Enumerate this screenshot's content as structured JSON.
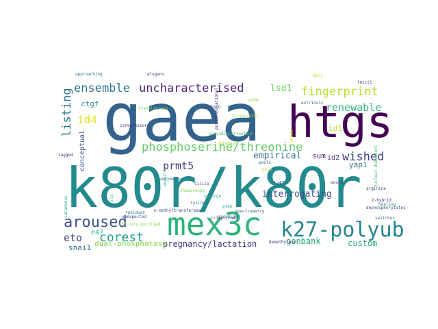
{
  "cloud": {
    "words": [
      {
        "text": "gaea",
        "color": "#33638d"
      },
      {
        "text": "k80r/k80r",
        "color": "#238a8d"
      },
      {
        "text": "htgs",
        "color": "#440154"
      },
      {
        "text": "mex3c",
        "color": "#2fb47c"
      },
      {
        "text": "k27-polyub",
        "color": "#25858e"
      },
      {
        "text": "phosphoserine/threonine",
        "color": "#5ec962"
      },
      {
        "text": "aroused",
        "color": "#3b528b"
      },
      {
        "text": "ensemble",
        "color": "#2a788e"
      },
      {
        "text": "uncharacterised",
        "color": "#482677"
      },
      {
        "text": "fingerprint",
        "color": "#b5de2b"
      },
      {
        "text": "renewable",
        "color": "#35b779"
      },
      {
        "text": "prmt5",
        "color": "#443983"
      },
      {
        "text": "wished",
        "color": "#404688"
      },
      {
        "text": "corest",
        "color": "#20a386"
      },
      {
        "text": "listing",
        "color": "#2a788e"
      },
      {
        "text": "id4",
        "color": "#dde318"
      },
      {
        "text": "eto",
        "color": "#414487"
      },
      {
        "text": "empirical",
        "color": "#2d708e"
      },
      {
        "text": "interrogating",
        "color": "#3b528b"
      },
      {
        "text": "genbank",
        "color": "#22a884"
      },
      {
        "text": "custom",
        "color": "#29af7f"
      },
      {
        "text": "pregnancy/lactation",
        "color": "#46327e"
      },
      {
        "text": "dual-phosphatase",
        "color": "#86d549"
      },
      {
        "text": "snai1",
        "color": "#31688e"
      },
      {
        "text": "sum",
        "color": "#481f70"
      },
      {
        "text": "lsd1",
        "color": "#6ece58"
      },
      {
        "text": "yap1",
        "color": "#2c728e"
      },
      {
        "text": "id3",
        "color": "#2e6f8e"
      },
      {
        "text": "id2",
        "color": "#453882"
      },
      {
        "text": "id1",
        "color": "#bddf26"
      },
      {
        "text": "ctgf",
        "color": "#21908d"
      },
      {
        "text": "conceptual",
        "color": "#3e4a89"
      },
      {
        "text": "e47",
        "color": "#2ab07f"
      },
      {
        "text": "cutaneous",
        "color": "#1f9e89"
      },
      {
        "text": "ela",
        "color": "#52c569"
      },
      {
        "text": "tagged",
        "color": "#472c7a"
      },
      {
        "text": "approaching",
        "color": "#2a768e"
      },
      {
        "text": "elegans",
        "color": "#3f4889"
      },
      {
        "text": "translations",
        "color": "#7ad151"
      },
      {
        "text": "corepressor",
        "color": "#482475"
      },
      {
        "text": "enzymatic",
        "color": "#2c738e"
      },
      {
        "text": "perturb",
        "color": "#38598c"
      },
      {
        "text": "p300",
        "color": "#95d840"
      },
      {
        "text": "extrinsic",
        "color": "#39568c"
      },
      {
        "text": "bmi1",
        "color": "#c2df23"
      },
      {
        "text": "tmict1",
        "color": "#433e85"
      },
      {
        "text": "posttranslational",
        "color": "#481a6c"
      },
      {
        "text": "illustrates",
        "color": "#a2da37"
      },
      {
        "text": "polyubiquitination",
        "color": "#4ac16d"
      },
      {
        "text": "database",
        "color": "#a8db34"
      },
      {
        "text": "n-methyltransferase",
        "color": "#3d4e8a"
      },
      {
        "text": "residues",
        "color": "#2d718e"
      },
      {
        "text": "unexpected",
        "color": "#3b528b"
      },
      {
        "text": "affinity-purified",
        "color": "#8ed645"
      },
      {
        "text": "silico",
        "color": "#424086"
      },
      {
        "text": "chaperones",
        "color": "#7fd34e"
      },
      {
        "text": "lysines",
        "color": "#2f6c8e"
      },
      {
        "text": "pten",
        "color": "#1e9b8a"
      },
      {
        "text": "paradigm",
        "color": "#2e6e8e"
      },
      {
        "text": "crispr/cas9",
        "color": "#472d7b"
      },
      {
        "text": "pools",
        "color": "#30698e"
      },
      {
        "text": "spectrometry",
        "color": "#375a8c"
      },
      {
        "text": "demethylase",
        "color": "#46307e"
      },
      {
        "text": "amino",
        "color": "#d8e219"
      },
      {
        "text": "poly",
        "color": "#b8de29"
      },
      {
        "text": "undergo",
        "color": "#22a785"
      },
      {
        "text": "dephosphorylates",
        "color": "#3c508b"
      },
      {
        "text": "switches",
        "color": "#306a8e"
      },
      {
        "text": "healing",
        "color": "#24878e"
      },
      {
        "text": "2-hybrid",
        "color": "#482878"
      },
      {
        "text": "wound",
        "color": "#3d4d8a"
      },
      {
        "text": "arginine",
        "color": "#414287"
      },
      {
        "text": "nuclear-dependent",
        "color": "#44bf70"
      },
      {
        "text": "underlie",
        "color": "#1fa188"
      }
    ]
  }
}
